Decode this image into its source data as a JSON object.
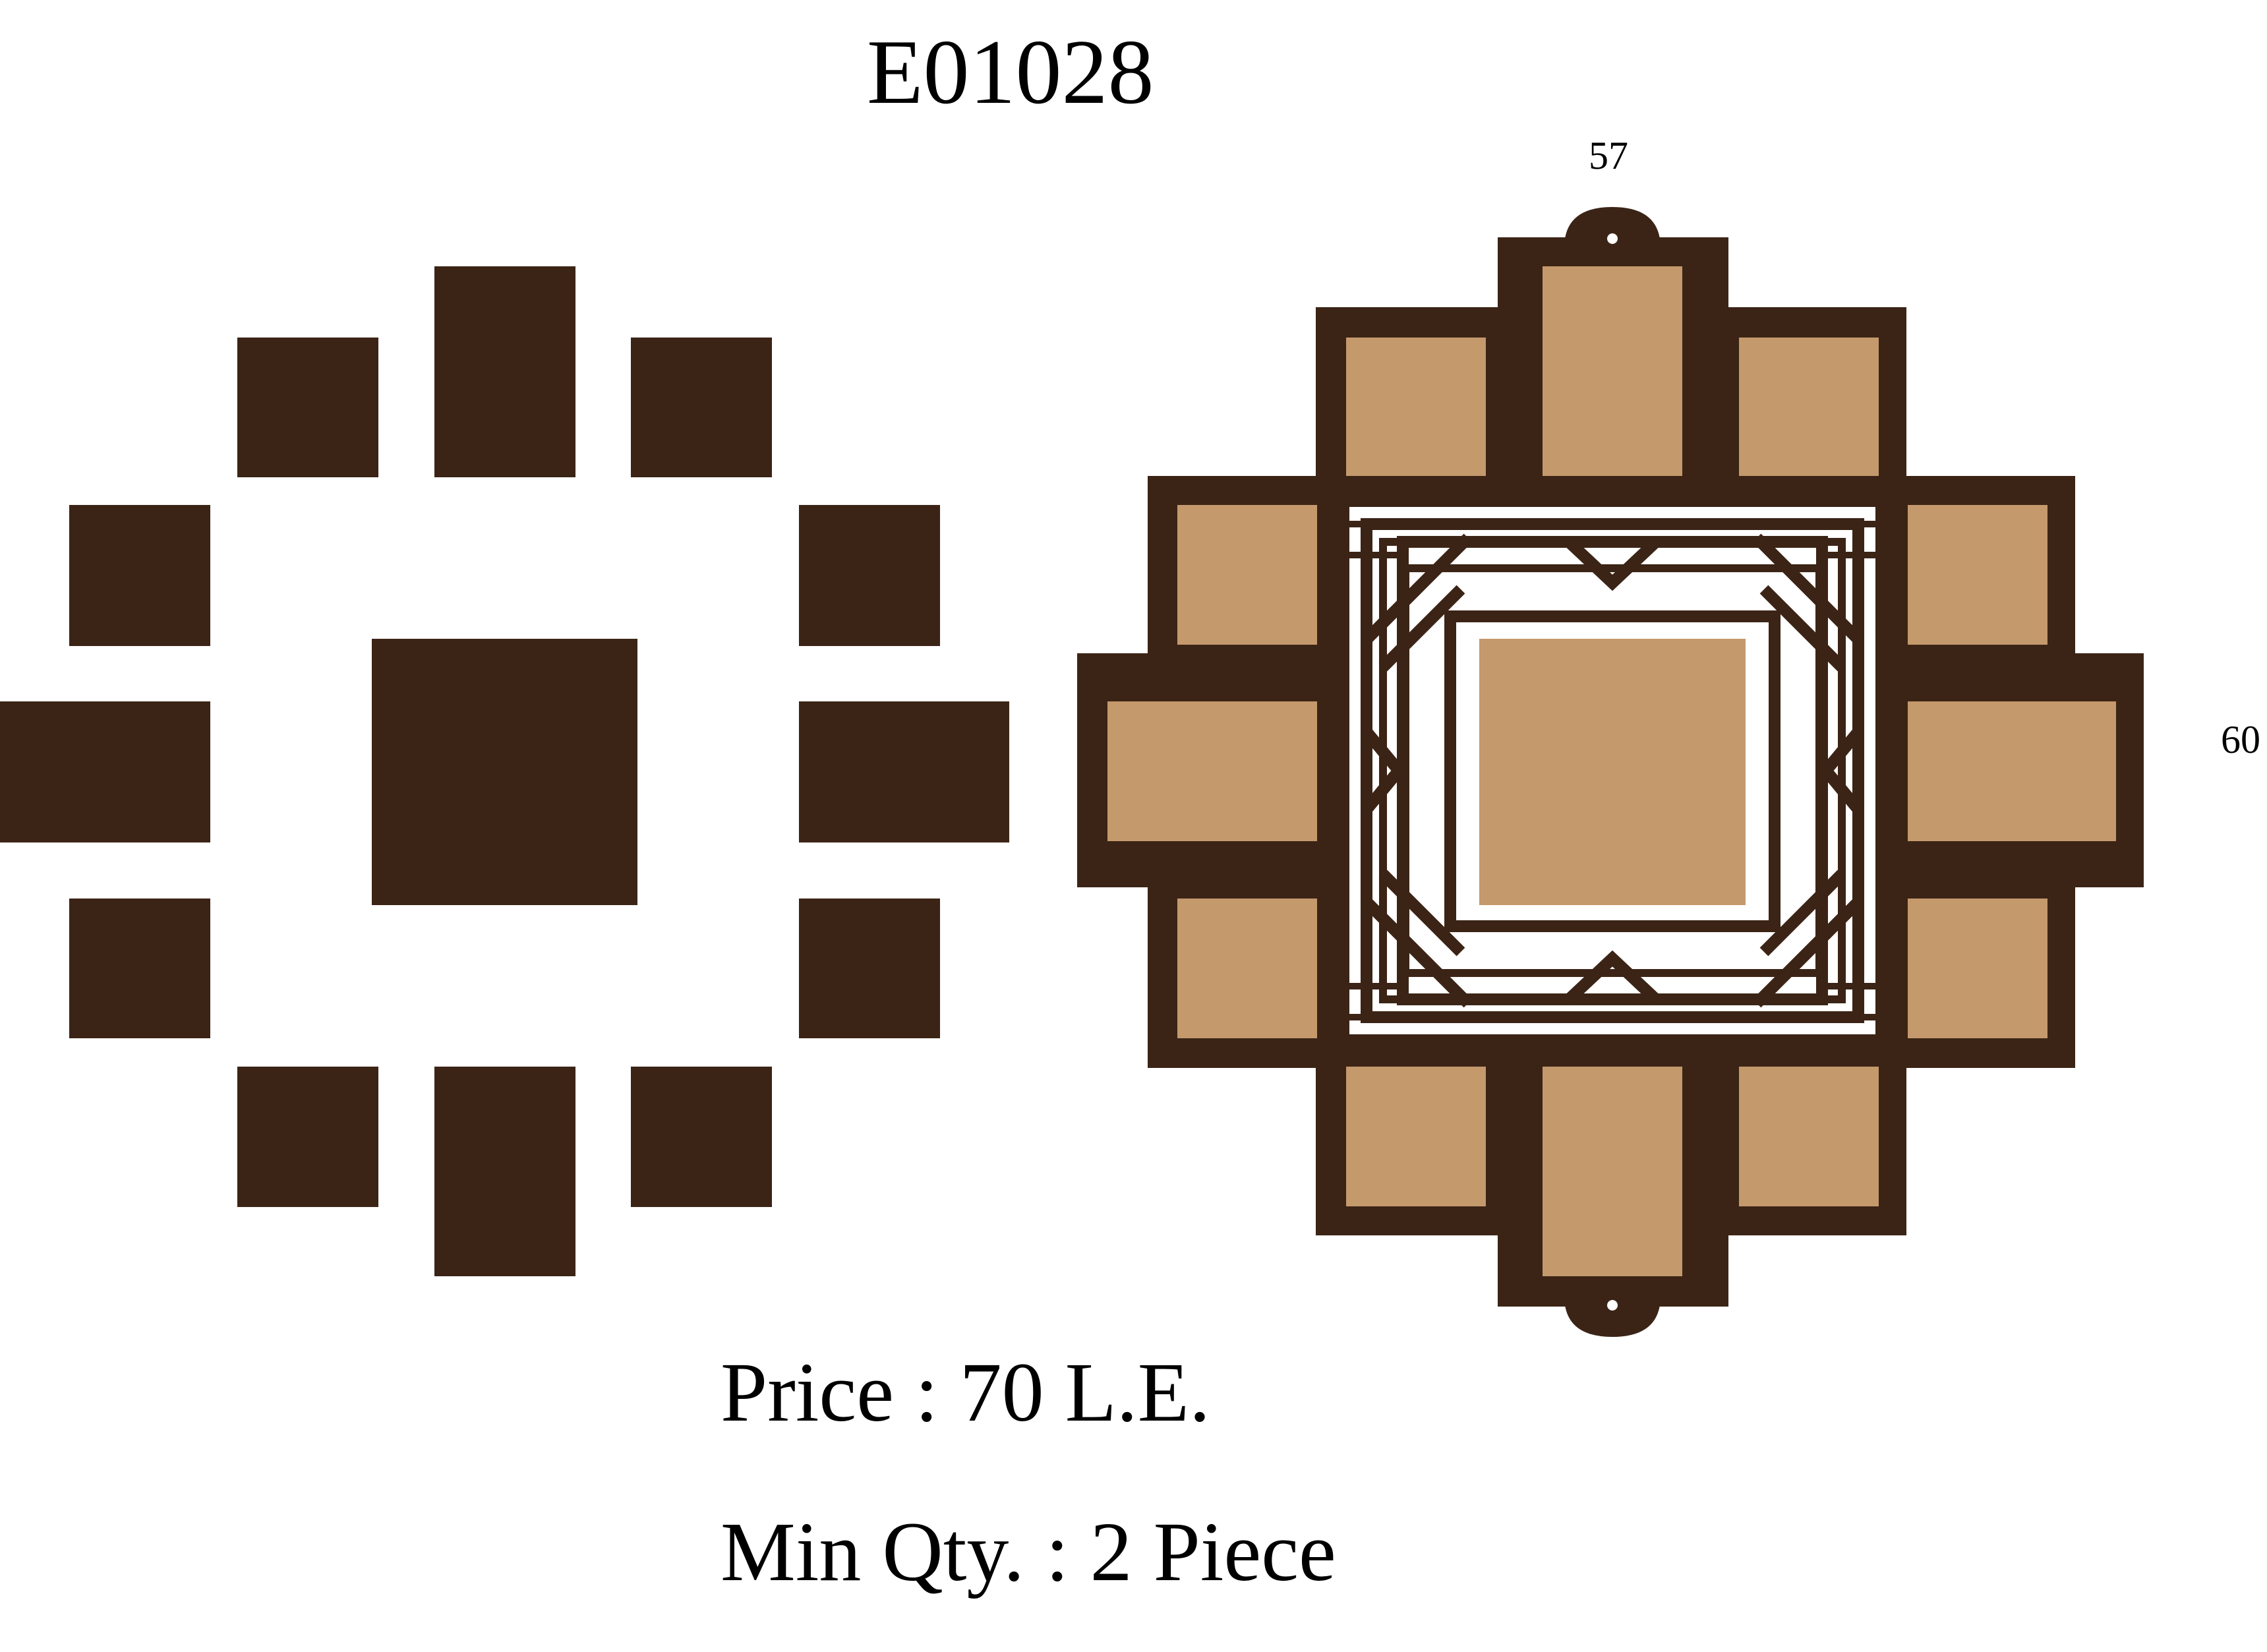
{
  "product": {
    "code": "E01028",
    "price_label": "Price : 70 L.E.",
    "min_qty_label": "Min Qty. : 2 Piece"
  },
  "dimensions": {
    "width": "57",
    "height": "60"
  },
  "colors": {
    "frame_brown": "#3b2416",
    "photo_tan": "#c4996c",
    "background": "#ffffff"
  },
  "figures": {
    "left": "photo-layout-silhouette",
    "right": "decorative-photo-frame"
  }
}
